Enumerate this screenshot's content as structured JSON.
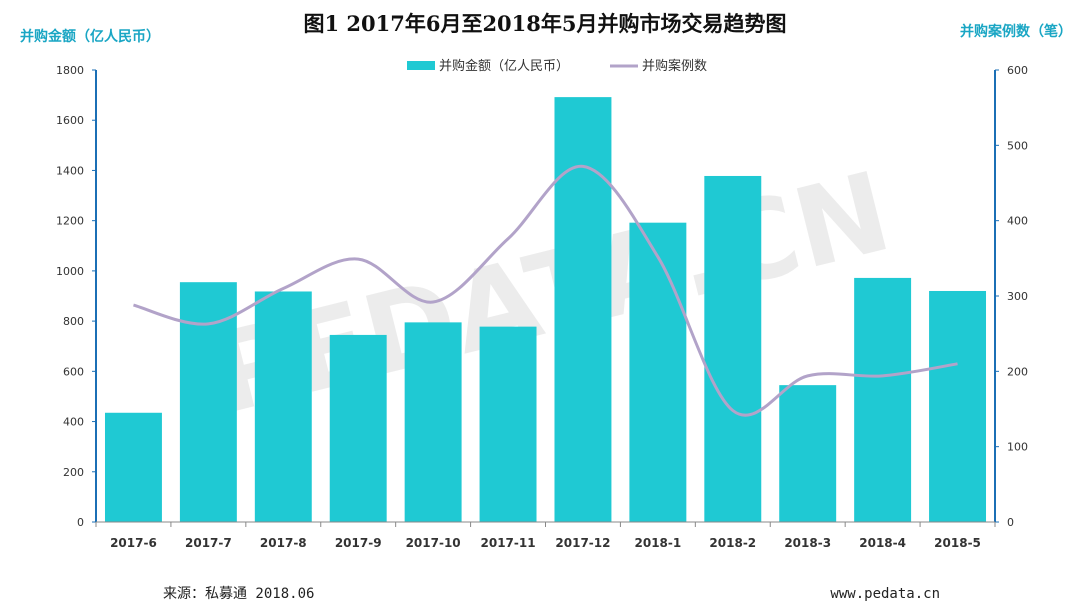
{
  "title": "图1  2017年6月至2018年5月并购市场交易趋势图",
  "watermark": "PEDATA.CN",
  "footer": {
    "source": "来源：私募通 2018.06",
    "website": "www.pedata.cn"
  },
  "colors": {
    "bar": "#1fc9d3",
    "line": "#b2a3c9",
    "axis": "#1b6fb5",
    "axis_title": "#1aa6c4"
  },
  "chart_data": {
    "type": "bar",
    "categories": [
      "2017-6",
      "2017-7",
      "2017-8",
      "2017-9",
      "2017-10",
      "2017-11",
      "2017-12",
      "2018-1",
      "2018-2",
      "2018-3",
      "2018-4",
      "2018-5"
    ],
    "series": [
      {
        "name": "并购金额（亿人民币）",
        "type": "bar",
        "axis": "left",
        "values": [
          435,
          955,
          918,
          745,
          795,
          778,
          1692,
          1192,
          1378,
          545,
          972,
          920
        ]
      },
      {
        "name": "并购案例数",
        "type": "line",
        "axis": "right",
        "values": [
          288,
          263,
          310,
          349,
          292,
          376,
          472,
          352,
          148,
          194,
          194,
          210
        ]
      }
    ],
    "yleft": {
      "label": "并购金额（亿人民币）",
      "range": [
        0,
        1800
      ],
      "ticks": [
        "0",
        "200",
        "400",
        "600",
        "800",
        "1000",
        "1200",
        "1400",
        "1600",
        "1800"
      ]
    },
    "yright": {
      "label": "并购案例数（笔）",
      "range": [
        0,
        600
      ],
      "ticks": [
        "0",
        "100",
        "200",
        "300",
        "400",
        "500",
        "600"
      ]
    },
    "legend_placement": "top-center",
    "grid": false
  }
}
